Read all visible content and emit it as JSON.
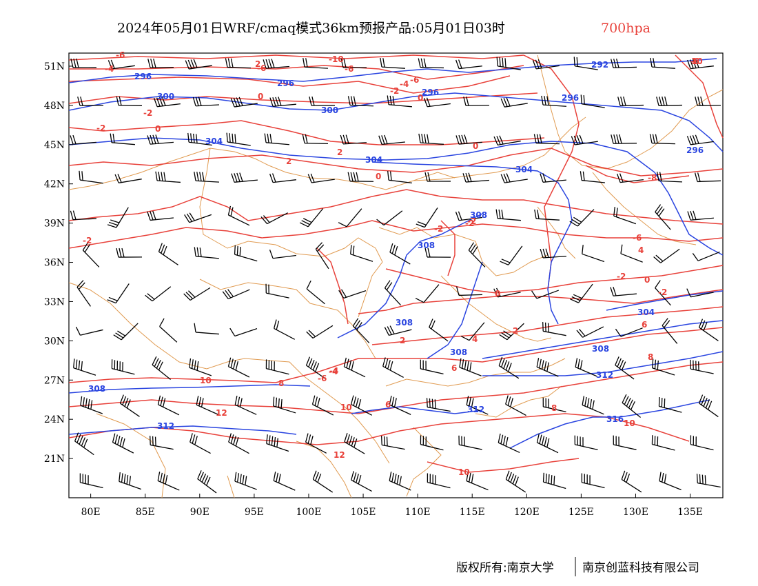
{
  "title": {
    "main": "2024年05月01日WRF/cmaq模式36km预报产品:05月01日03时",
    "level": "700hpa"
  },
  "axes": {
    "lon_ticks": [
      "80E",
      "85E",
      "90E",
      "95E",
      "100E",
      "105E",
      "110E",
      "115E",
      "120E",
      "125E",
      "130E",
      "135E"
    ],
    "lat_ticks": [
      "51N",
      "48N",
      "45N",
      "42N",
      "39N",
      "36N",
      "33N",
      "30N",
      "27N",
      "24N",
      "21N"
    ],
    "lon_range": [
      78,
      138
    ],
    "lat_range": [
      18,
      52
    ]
  },
  "copyright": {
    "left": "版权所有:南京大学",
    "right": "南京创蓝科技有限公司"
  },
  "colors": {
    "temperature": "#e8413a",
    "height": "#2a45e0",
    "border": "#e09a50",
    "wind": "#000000"
  },
  "contour_labels": {
    "height": [
      "296",
      "296",
      "300",
      "296",
      "304",
      "300",
      "296",
      "292",
      "296",
      "304",
      "304",
      "308",
      "308",
      "308",
      "308",
      "308",
      "312",
      "312",
      "312",
      "316",
      "304",
      "308"
    ],
    "temperature": [
      "-6",
      "-4",
      "-2",
      "-6",
      "-10",
      "-6",
      "-4",
      "-2",
      "0",
      "-6",
      "2",
      "-2",
      "-2",
      "0",
      "0",
      "0",
      "2",
      "-2",
      "2",
      "0",
      "4",
      "-2",
      "6",
      "-4",
      "-6",
      "10",
      "12",
      "8",
      "6",
      "-4",
      "10",
      "12",
      "8",
      "8",
      "6",
      "2",
      "4",
      "0",
      "-2",
      "0",
      "-2",
      "-2",
      "-6",
      "-8",
      "10",
      "-8",
      "10",
      "2",
      "10"
    ]
  }
}
